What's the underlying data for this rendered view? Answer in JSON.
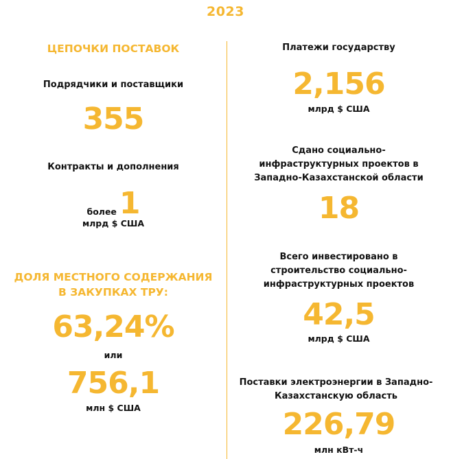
{
  "year": "2023",
  "left": {
    "supply_heading": "ЦЕПОЧКИ ПОСТАВОК",
    "contractors_label": "Подрядчики и поставщики",
    "contractors_value": "355",
    "contracts_label": "Контракты и дополнения",
    "contracts_prefix": "более",
    "contracts_value": "1",
    "contracts_unit": "млрд $ США",
    "local_heading_line1": "ДОЛЯ МЕСТНОГО СОДЕРЖАНИЯ",
    "local_heading_line2": "В ЗАКУПКАХ ТРУ:",
    "local_percent": "63,24%",
    "local_or": "или",
    "local_value": "756,1",
    "local_unit": "млн $ США"
  },
  "right": {
    "payments_label": "Платежи государству",
    "payments_value": "2,156",
    "payments_unit": "млрд $ США",
    "projects_label_line1": "Сдано социально-",
    "projects_label_line2": "инфраструктурных проектов в",
    "projects_label_line3": "Западно-Казахстанской области",
    "projects_value": "18",
    "invest_label_line1": "Всего инвестировано в",
    "invest_label_line2": "строительство социально-",
    "invest_label_line3": "инфраструктурных проектов",
    "invest_value": "42,5",
    "invest_unit": "млрд $ США",
    "power_label_line1": "Поставки электроэнергии в Западно-",
    "power_label_line2": "Казахстанскую область",
    "power_value": "226,79",
    "power_unit": "млн кВт-ч"
  },
  "colors": {
    "accent": "#f5b731",
    "text": "#111111",
    "background": "#ffffff"
  }
}
